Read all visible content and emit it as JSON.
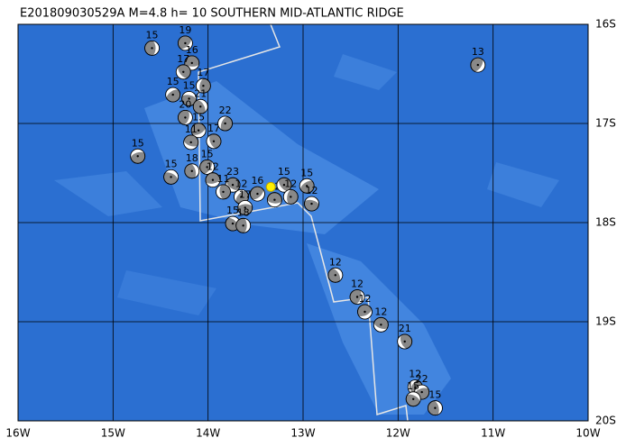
{
  "title": "E201809030529A  M=4.8  h= 10 SOUTHERN MID-ATLANTIC RIDGE",
  "xlim": [
    -16,
    -10
  ],
  "ylim": [
    -20,
    -16
  ],
  "xticks": [
    {
      "value": -16,
      "label": "16W"
    },
    {
      "value": -15,
      "label": "15W"
    },
    {
      "value": -14,
      "label": "14W"
    },
    {
      "value": -13,
      "label": "13W"
    },
    {
      "value": -12,
      "label": "12W"
    },
    {
      "value": -11,
      "label": "11W"
    },
    {
      "value": -10,
      "label": "10W"
    }
  ],
  "yticks": [
    {
      "value": -16,
      "label": "16S"
    },
    {
      "value": -17,
      "label": "17S"
    },
    {
      "value": -18,
      "label": "18S"
    },
    {
      "value": -19,
      "label": "19S"
    },
    {
      "value": -20,
      "label": "20S"
    }
  ],
  "epicenter": {
    "lon": -13.34,
    "lat": -17.64
  },
  "events": [
    {
      "lon": -14.59,
      "lat": -16.24,
      "label": "15"
    },
    {
      "lon": -14.24,
      "lat": -16.19,
      "label": "19"
    },
    {
      "lon": -14.17,
      "lat": -16.39,
      "label": "16"
    },
    {
      "lon": -14.26,
      "lat": -16.48,
      "label": "17"
    },
    {
      "lon": -14.05,
      "lat": -16.62,
      "label": "17"
    },
    {
      "lon": -14.37,
      "lat": -16.71,
      "label": "15"
    },
    {
      "lon": -14.2,
      "lat": -16.75,
      "label": "15"
    },
    {
      "lon": -14.08,
      "lat": -16.83,
      "label": "21"
    },
    {
      "lon": -14.24,
      "lat": -16.94,
      "label": "20"
    },
    {
      "lon": -14.1,
      "lat": -17.07,
      "label": "15"
    },
    {
      "lon": -14.18,
      "lat": -17.19,
      "label": "11"
    },
    {
      "lon": -13.94,
      "lat": -17.18,
      "label": "17"
    },
    {
      "lon": -13.82,
      "lat": -17.0,
      "label": "22"
    },
    {
      "lon": -14.74,
      "lat": -17.33,
      "label": "15"
    },
    {
      "lon": -14.39,
      "lat": -17.54,
      "label": "15"
    },
    {
      "lon": -14.17,
      "lat": -17.48,
      "label": "18"
    },
    {
      "lon": -14.01,
      "lat": -17.44,
      "label": "15"
    },
    {
      "lon": -13.95,
      "lat": -17.57,
      "label": "12"
    },
    {
      "lon": -13.74,
      "lat": -17.62,
      "label": "23"
    },
    {
      "lon": -13.84,
      "lat": -17.69,
      "label": "11"
    },
    {
      "lon": -13.65,
      "lat": -17.74,
      "label": "12"
    },
    {
      "lon": -13.61,
      "lat": -17.85,
      "label": "17"
    },
    {
      "lon": -13.74,
      "lat": -18.01,
      "label": "15"
    },
    {
      "lon": -13.63,
      "lat": -18.03,
      "label": "18"
    },
    {
      "lon": -13.48,
      "lat": -17.71,
      "label": "16"
    },
    {
      "lon": -13.3,
      "lat": -17.77,
      "label": "12"
    },
    {
      "lon": -13.2,
      "lat": -17.62,
      "label": "15"
    },
    {
      "lon": -13.13,
      "lat": -17.74,
      "label": "12"
    },
    {
      "lon": -12.96,
      "lat": -17.63,
      "label": "15"
    },
    {
      "lon": -12.91,
      "lat": -17.81,
      "label": "12"
    },
    {
      "lon": -12.66,
      "lat": -18.53,
      "label": "12"
    },
    {
      "lon": -12.43,
      "lat": -18.75,
      "label": "12"
    },
    {
      "lon": -12.35,
      "lat": -18.9,
      "label": "12"
    },
    {
      "lon": -12.18,
      "lat": -19.03,
      "label": "12"
    },
    {
      "lon": -11.93,
      "lat": -19.2,
      "label": "21"
    },
    {
      "lon": -11.82,
      "lat": -19.66,
      "label": "12"
    },
    {
      "lon": -11.75,
      "lat": -19.71,
      "label": "22"
    },
    {
      "lon": -11.84,
      "lat": -19.78,
      "label": "15"
    },
    {
      "lon": -11.61,
      "lat": -19.87,
      "label": "15"
    },
    {
      "lon": -11.16,
      "lat": -16.41,
      "label": "13"
    }
  ]
}
